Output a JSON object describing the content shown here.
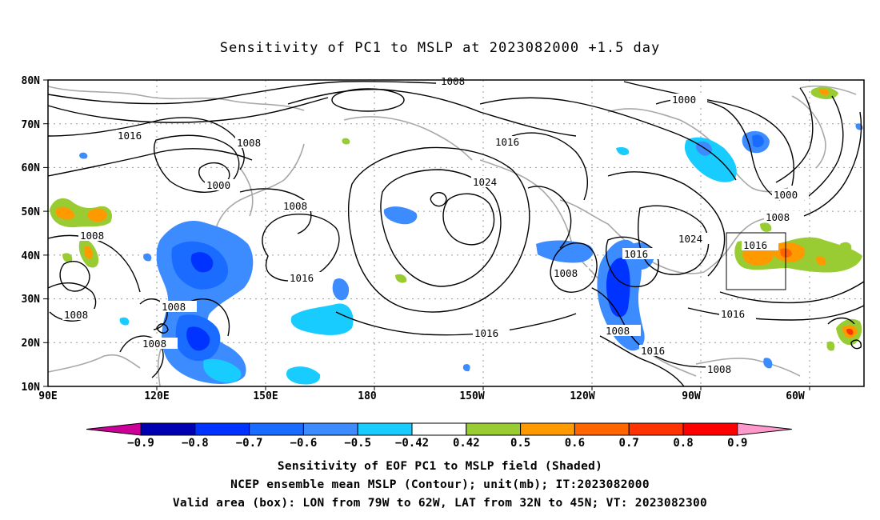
{
  "title": "Sensitivity of PC1 to MSLP at 2023082000 +1.5 day",
  "lat_labels": [
    "80N",
    "70N",
    "60N",
    "50N",
    "40N",
    "30N",
    "20N",
    "10N"
  ],
  "lon_labels": [
    "90E",
    "120E",
    "150E",
    "180",
    "150W",
    "120W",
    "90W",
    "60W"
  ],
  "contour_labels": [
    "1008",
    "1000",
    "1016",
    "1008",
    "1000",
    "1008",
    "1016",
    "1024",
    "1008",
    "1016",
    "1008",
    "1008",
    "1008",
    "1016",
    "1008",
    "1016",
    "1016",
    "1008",
    "1024",
    "1000",
    "1008",
    "1016",
    "1016",
    "1008"
  ],
  "colorbar": {
    "colors": [
      "#cc0099",
      "#0000b3",
      "#0033ff",
      "#1a6bff",
      "#3d8cff",
      "#19ccff",
      "#ffffff",
      "#99cc33",
      "#ff9900",
      "#ff6600",
      "#ff3300",
      "#ff0000",
      "#ff99cc"
    ],
    "labels": [
      "−0.9",
      "−0.8",
      "−0.7",
      "−0.6",
      "−0.5",
      "−0.42",
      "0.42",
      "0.5",
      "0.6",
      "0.7",
      "0.8",
      "0.9"
    ]
  },
  "valid_box": {
    "lon": [
      "79W",
      "62W"
    ],
    "lat": [
      "32N",
      "45N"
    ]
  },
  "captions": [
    "Sensitivity of EOF PC1 to MSLP field (Shaded)",
    "NCEP ensemble mean MSLP (Contour); unit(mb); IT:2023082000",
    "Valid area (box): LON from 79W to 62W, LAT from 32N to 45N; VT: 2023082300"
  ]
}
